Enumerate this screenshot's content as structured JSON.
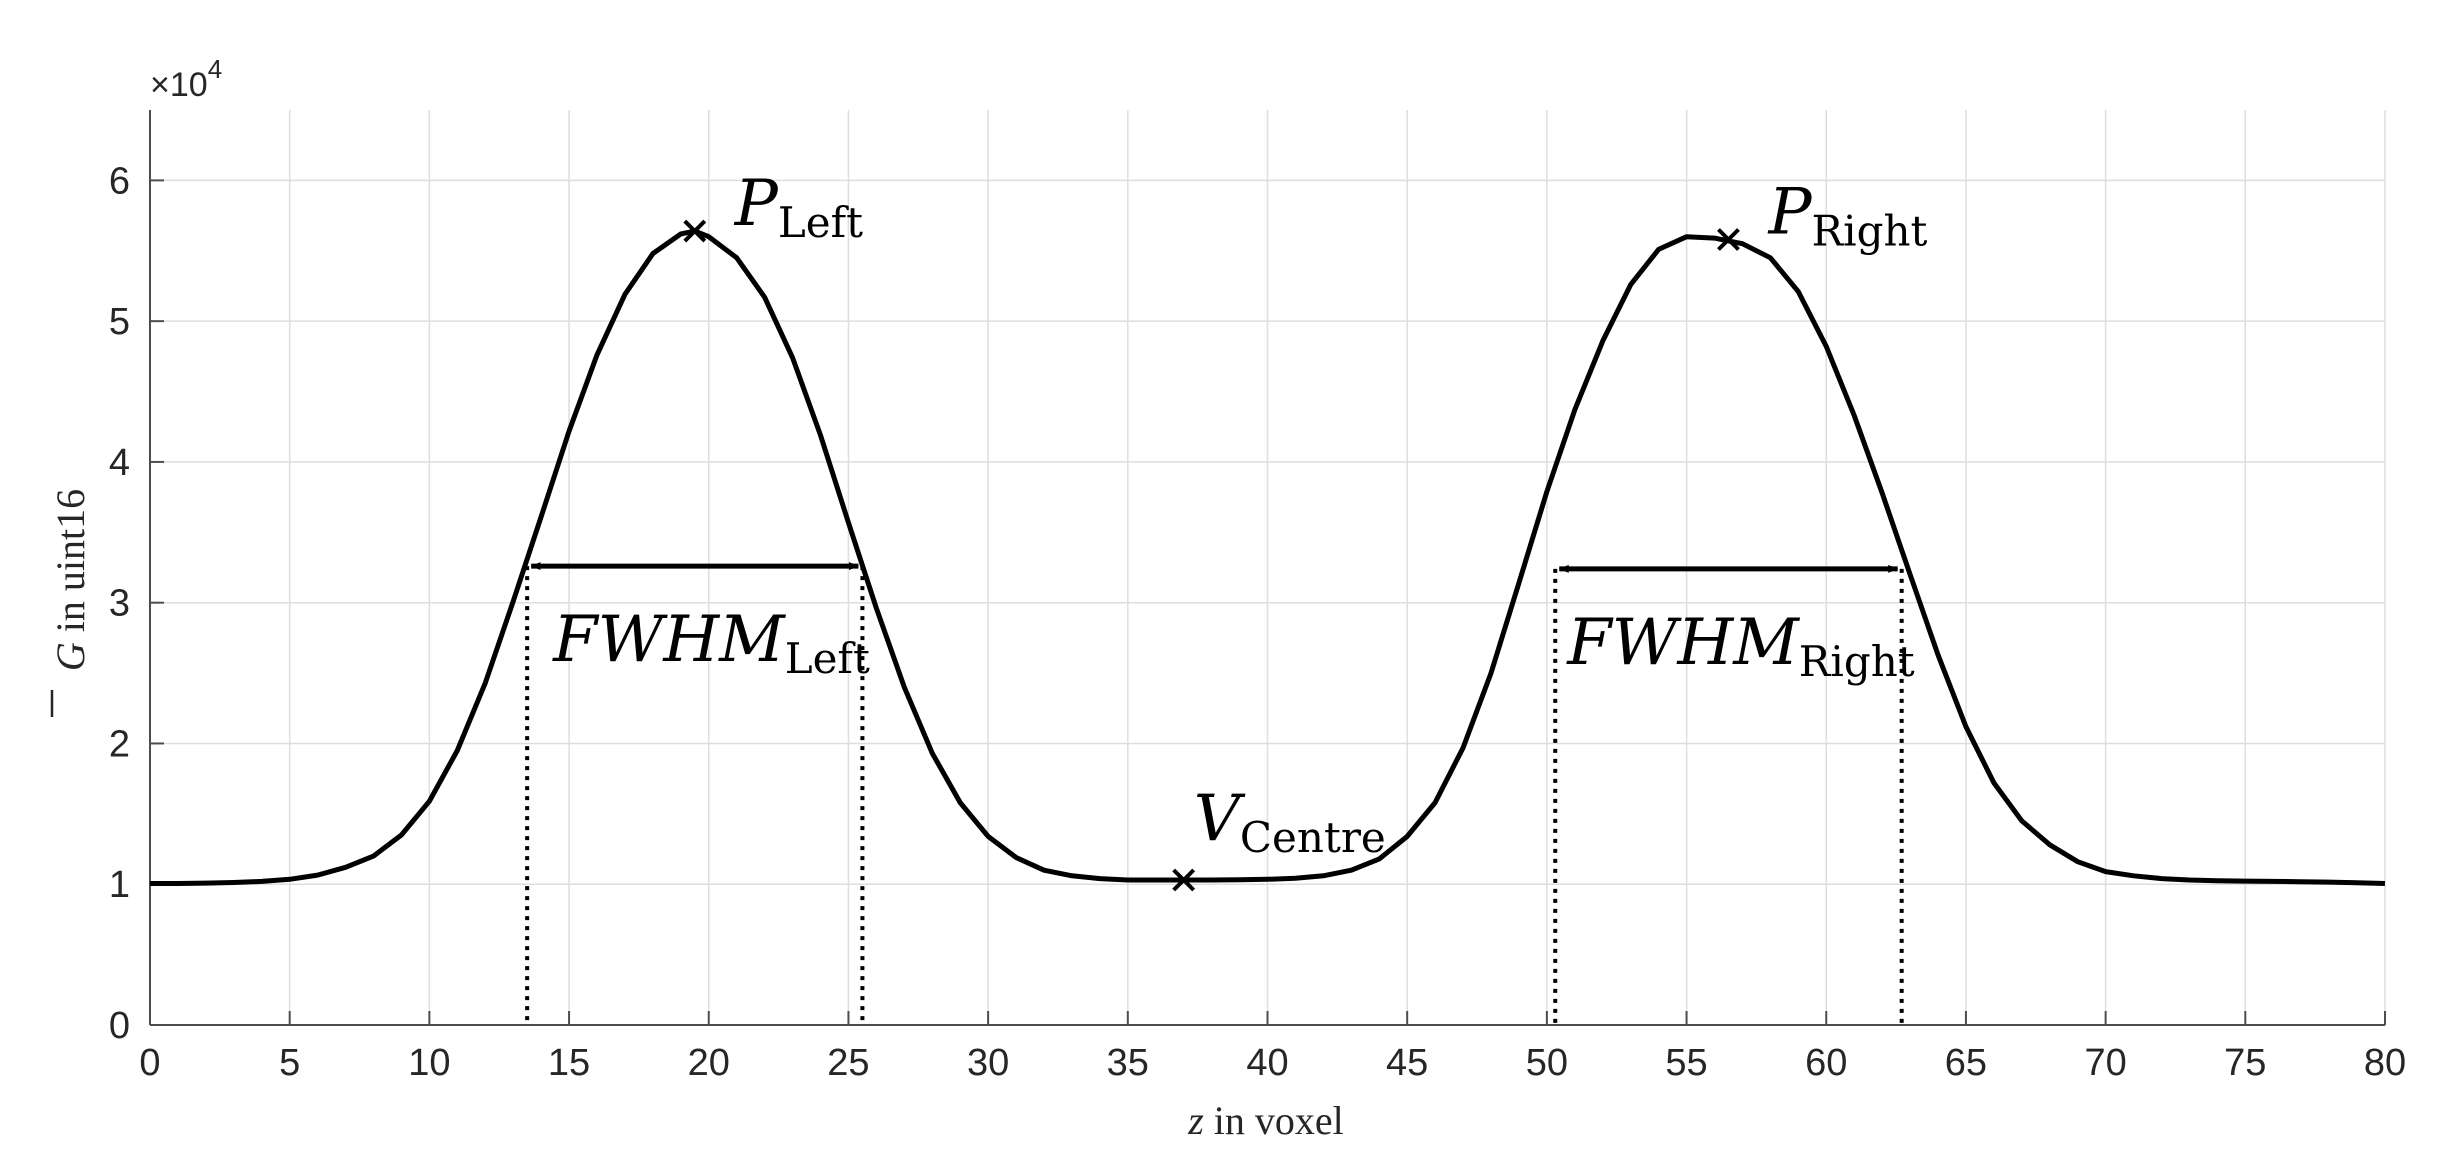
{
  "chart_data": {
    "type": "line",
    "xlabel_var": "z",
    "xlabel_rest": " in voxel",
    "ylabel_var": "G",
    "ylabel_rest": " in uint16",
    "y_exponent_base": "×10",
    "y_exponent_power": "4",
    "xlim": [
      0,
      80
    ],
    "ylim": [
      0,
      65000
    ],
    "x_ticks": [
      0,
      5,
      10,
      15,
      20,
      25,
      30,
      35,
      40,
      45,
      50,
      55,
      60,
      65,
      70,
      75,
      80
    ],
    "y_ticks": [
      0,
      10000,
      20000,
      30000,
      40000,
      50000,
      60000
    ],
    "y_tick_labels": [
      "0",
      "1",
      "2",
      "3",
      "4",
      "5",
      "6"
    ],
    "grid": true,
    "series": [
      {
        "x": [
          0,
          1,
          2,
          3,
          4,
          5,
          6,
          7,
          8,
          9,
          10,
          11,
          12,
          13,
          14,
          15,
          16,
          17,
          18,
          19,
          19.5,
          20,
          21,
          22,
          23,
          24,
          25,
          26,
          27,
          28,
          29,
          30,
          31,
          32,
          33,
          34,
          35,
          36,
          37,
          38,
          39,
          40,
          41,
          42,
          43,
          44,
          45,
          46,
          47,
          48,
          49,
          50,
          51,
          52,
          53,
          54,
          55,
          56,
          56.5,
          57,
          58,
          59,
          60,
          61,
          62,
          63,
          64,
          65,
          66,
          67,
          68,
          69,
          70,
          71,
          72,
          73,
          74,
          75,
          76,
          77,
          78,
          79,
          80
        ],
        "y": [
          10050,
          10050,
          10080,
          10120,
          10200,
          10350,
          10650,
          11200,
          12000,
          13500,
          15900,
          19500,
          24300,
          30100,
          36100,
          42200,
          47600,
          51900,
          54800,
          56200,
          56400,
          56000,
          54500,
          51700,
          47400,
          41900,
          35700,
          29600,
          24000,
          19300,
          15800,
          13400,
          11900,
          11000,
          10600,
          10400,
          10300,
          10300,
          10300,
          10300,
          10320,
          10350,
          10420,
          10600,
          11000,
          11800,
          13400,
          15800,
          19700,
          25000,
          31400,
          37900,
          43700,
          48600,
          52600,
          55100,
          56000,
          55900,
          55700,
          55500,
          54500,
          52100,
          48200,
          43300,
          37800,
          32000,
          26300,
          21200,
          17200,
          14500,
          12800,
          11600,
          10900,
          10600,
          10400,
          10300,
          10250,
          10220,
          10200,
          10180,
          10150,
          10100,
          10050
        ]
      }
    ],
    "annotations": {
      "peak_left": {
        "main": "P",
        "sub": "Left",
        "x": 19.5,
        "y": 56400
      },
      "peak_right": {
        "main": "P",
        "sub": "Right",
        "x": 56.5,
        "y": 55800
      },
      "valley_centre": {
        "main": "V",
        "sub": "Centre",
        "x": 37,
        "y": 10300
      },
      "fwhm_left": {
        "main": "FWHM",
        "sub": "Left",
        "x1": 13.5,
        "x2": 25.5,
        "y": 32600
      },
      "fwhm_right": {
        "main": "FWHM",
        "sub": "Right",
        "x1": 50.3,
        "x2": 62.7,
        "y": 32400
      }
    }
  }
}
